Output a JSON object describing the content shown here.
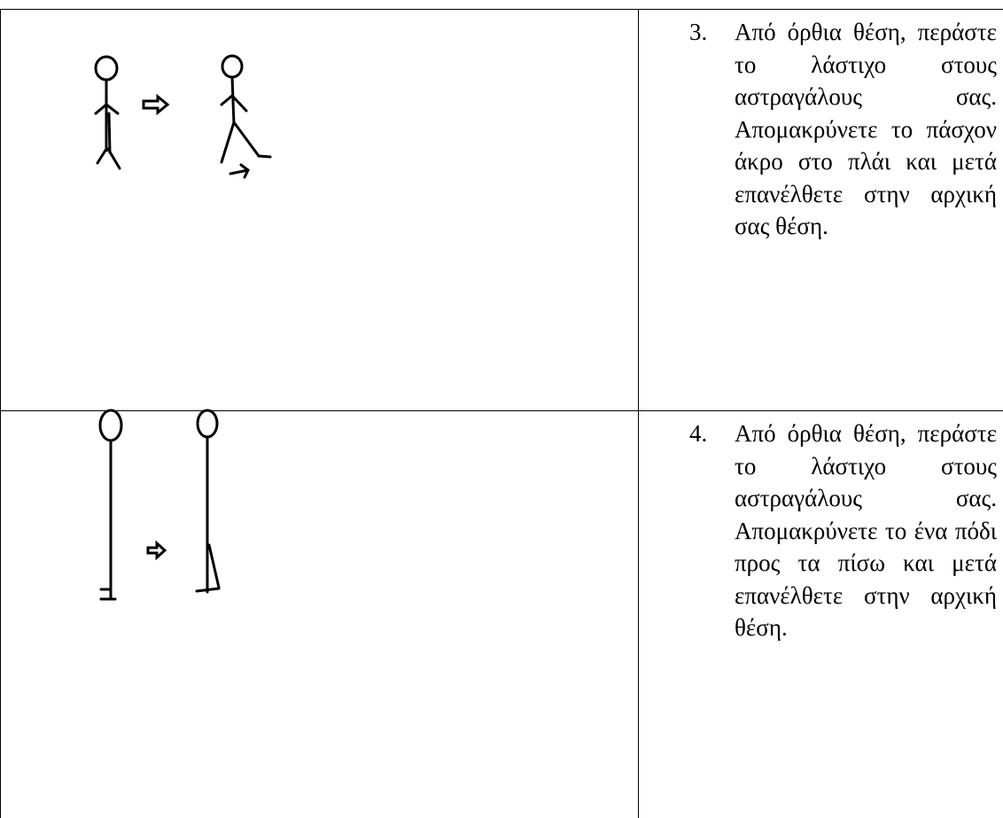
{
  "rows": [
    {
      "number": "3.",
      "text": "Από όρθια θέση, περάστε το λάστιχο στους αστραγάλους σας. Απομακρύνετε το πάσχον άκρο στο πλάι και μετά επανέλθετε στην αρχική σας θέση."
    },
    {
      "number": "4.",
      "text": "Από όρθια θέση, περάστε το λάστιχο στους αστραγάλους σας. Απομακρύνετε το ένα πόδι προς τα πίσω και μετά επανέλθετε στην αρχική θέση."
    }
  ]
}
